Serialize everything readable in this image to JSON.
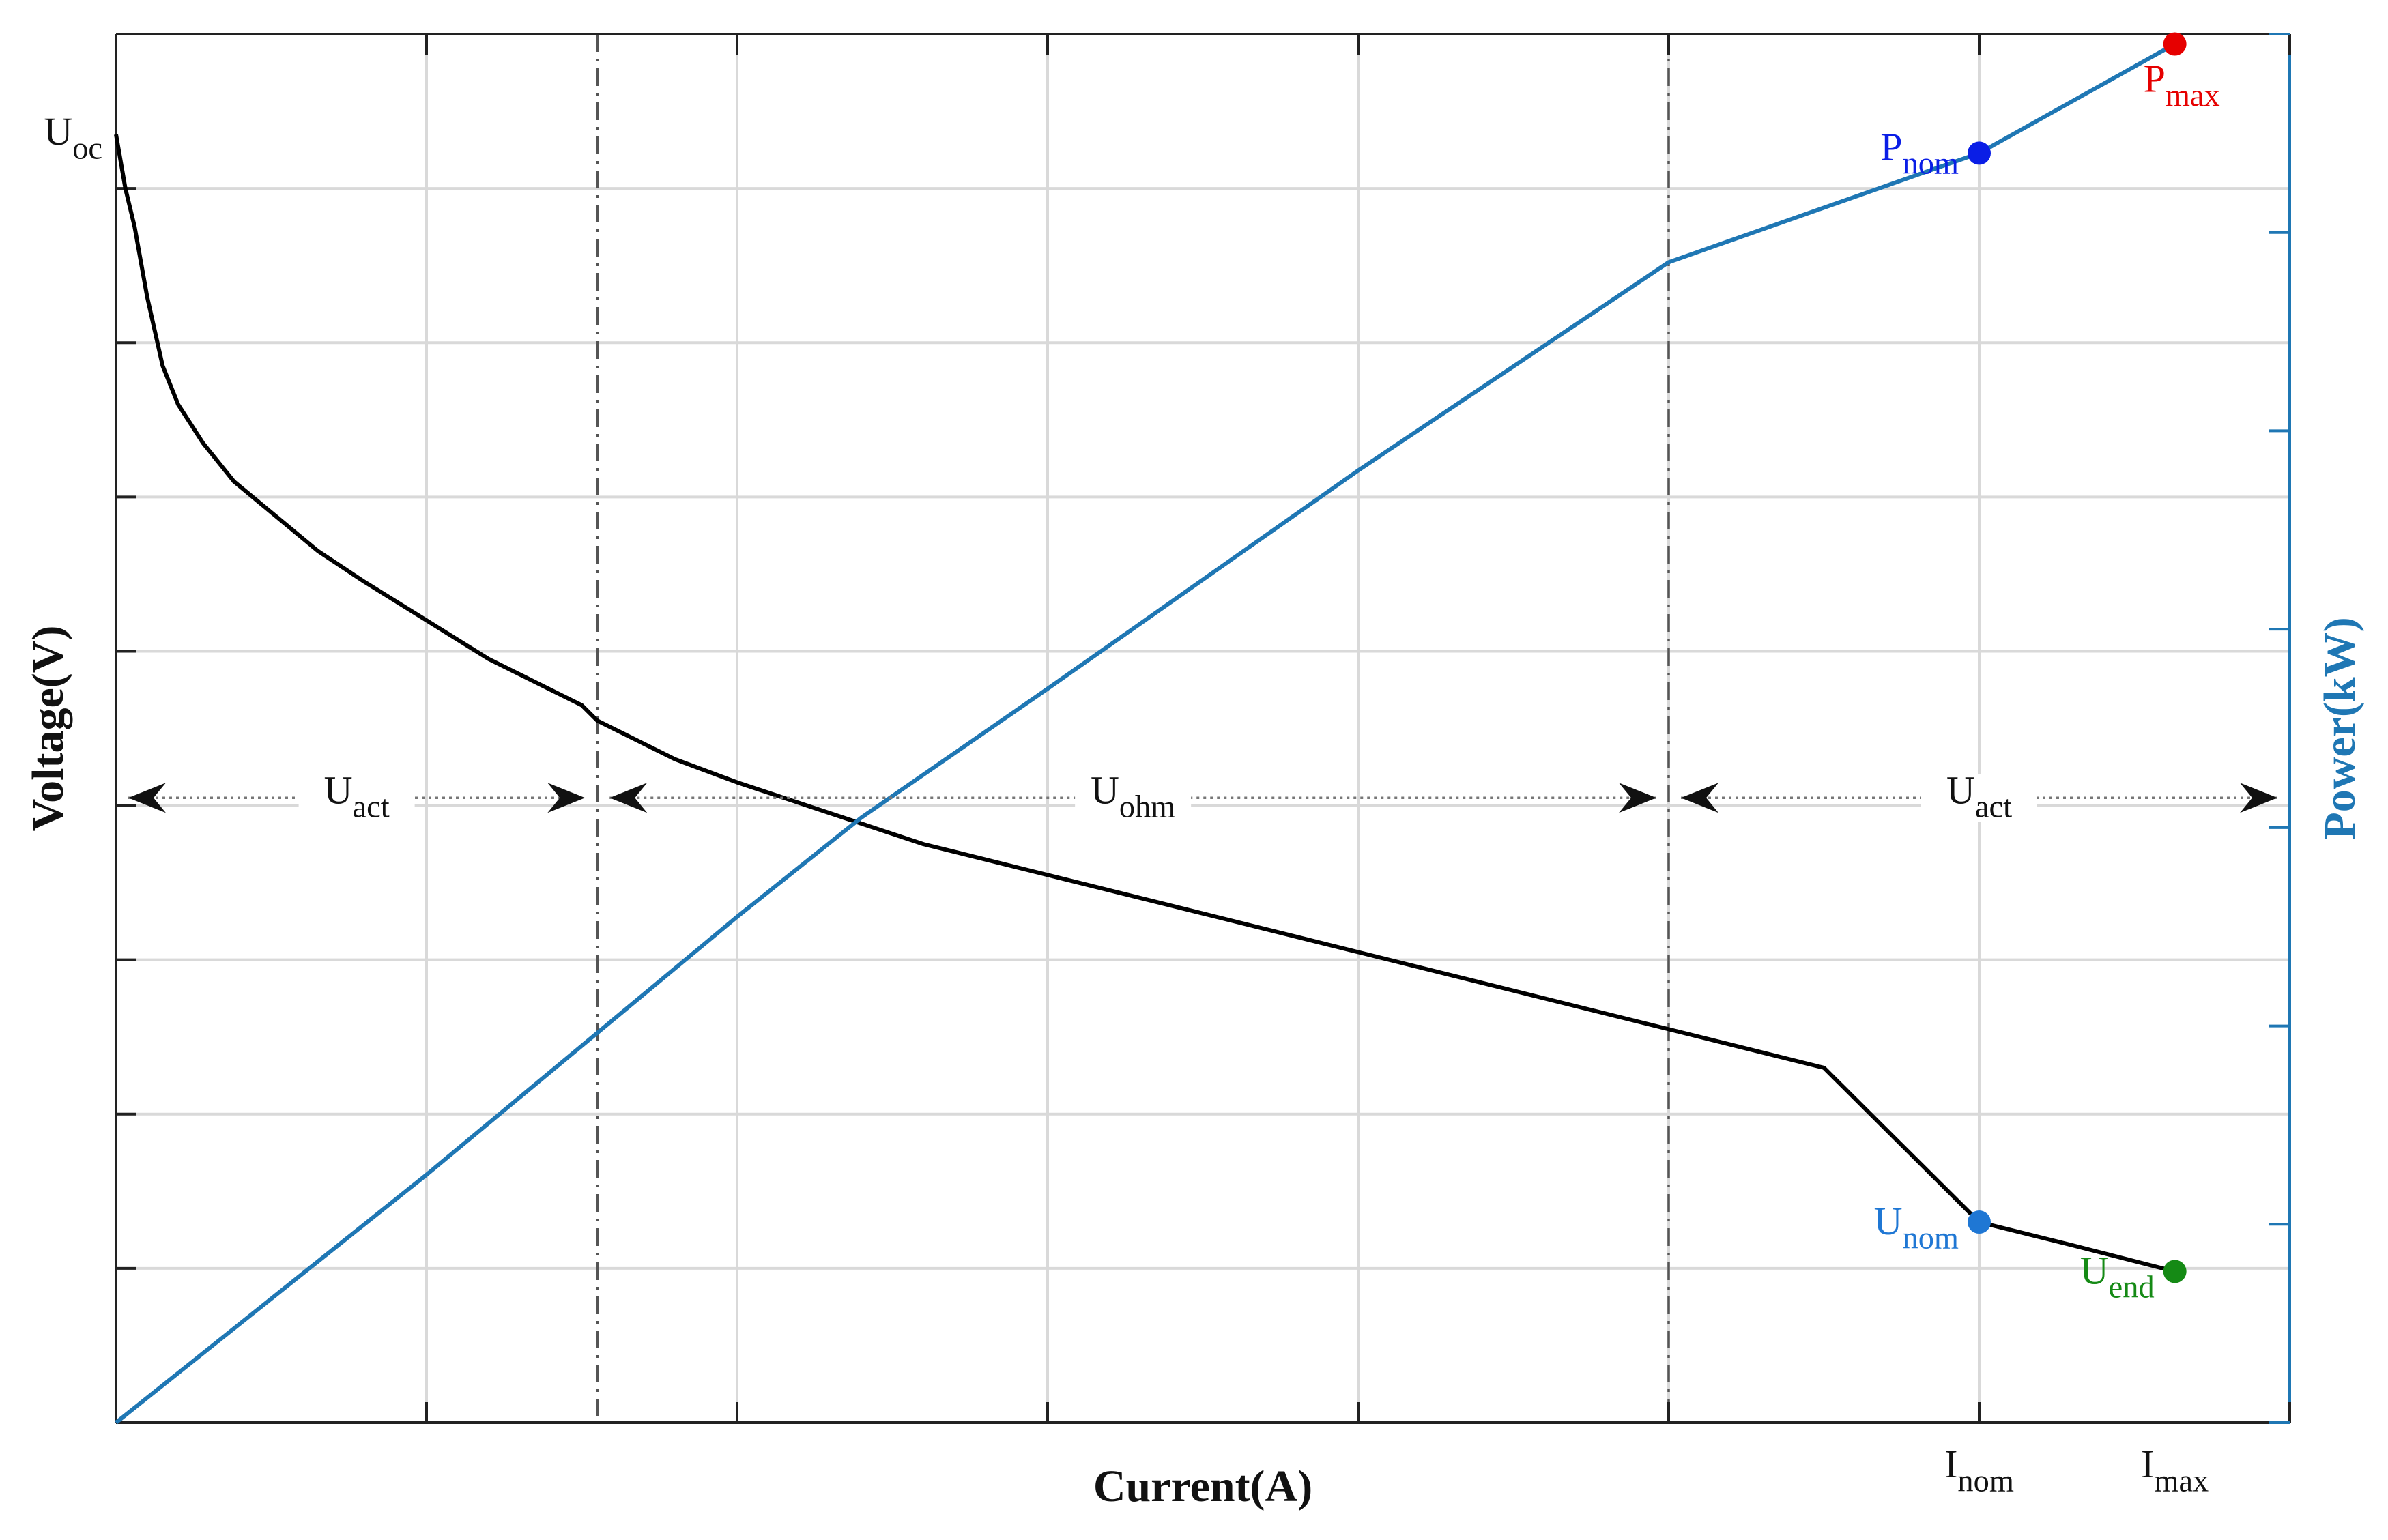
{
  "chart_data": {
    "type": "line",
    "title": "",
    "xlabel": "Current(A)",
    "ylabel_left": "Voltage(V)",
    "ylabel_right": "Power(kW)",
    "xlim": [
      0,
      7
    ],
    "ylim_left": [
      0,
      9
    ],
    "ylim_right": [
      0,
      7
    ],
    "x_ticks": [
      0,
      1,
      2,
      3,
      4,
      5,
      6,
      7
    ],
    "x_tick_labels": [
      {
        "x": 6.0,
        "main": "I",
        "sub": "nom"
      },
      {
        "x": 6.63,
        "main": "I",
        "sub": "max"
      }
    ],
    "grid": true,
    "right_axis_color": "#1f77b4",
    "series": [
      {
        "axis": "left",
        "color": "#000000",
        "x": [
          0,
          0.03,
          0.06,
          0.1,
          0.15,
          0.2,
          0.28,
          0.38,
          0.5,
          0.65,
          0.8,
          1.0,
          1.2,
          1.5,
          1.55,
          1.8,
          2.0,
          2.3,
          2.6,
          3.0,
          3.5,
          4.0,
          4.5,
          5.0,
          5.5,
          6.0,
          6.3,
          6.63
        ],
        "y": [
          8.35,
          8.0,
          7.75,
          7.3,
          6.85,
          6.6,
          6.35,
          6.1,
          5.9,
          5.65,
          5.45,
          5.2,
          4.95,
          4.65,
          4.55,
          4.3,
          4.15,
          3.95,
          3.75,
          3.55,
          3.3,
          3.05,
          2.8,
          2.55,
          2.3,
          1.3,
          1.15,
          0.98
        ]
      },
      {
        "axis": "right",
        "color": "#1f77b4",
        "x": [
          0,
          1.0,
          2.0,
          2.4,
          3.0,
          4.0,
          5.0,
          6.0,
          6.63
        ],
        "y": [
          0,
          1.25,
          2.55,
          3.05,
          3.7,
          4.8,
          5.85,
          6.4,
          6.95
        ]
      }
    ],
    "markers": [
      {
        "axis": "right",
        "x": 6.0,
        "y": 6.4,
        "color": "#0a1ee6",
        "main": "P",
        "sub": "nom",
        "label_side": "left"
      },
      {
        "axis": "right",
        "x": 6.63,
        "y": 6.95,
        "color": "#e60000",
        "main": "P",
        "sub": "max",
        "label_side": "below"
      },
      {
        "axis": "left",
        "x": 6.0,
        "y": 1.3,
        "color": "#1f77d4",
        "main": "U",
        "sub": "nom",
        "label_side": "left"
      },
      {
        "axis": "left",
        "x": 6.63,
        "y": 0.98,
        "color": "#158a15",
        "main": "U",
        "sub": "end",
        "label_side": "left"
      }
    ],
    "axis_annotations": [
      {
        "axis": "left",
        "y": 8.35,
        "main": "U",
        "sub": "oc"
      }
    ],
    "region_dividers": [
      1.55,
      5.0
    ],
    "region_arrow_y": 4.05,
    "regions": [
      {
        "x0": 0,
        "x1": 1.55,
        "main": "U",
        "sub": "act"
      },
      {
        "x0": 1.55,
        "x1": 5.0,
        "main": "U",
        "sub": "ohm"
      },
      {
        "x0": 5.0,
        "x1": 7.0,
        "main": "U",
        "sub": "act"
      }
    ]
  }
}
